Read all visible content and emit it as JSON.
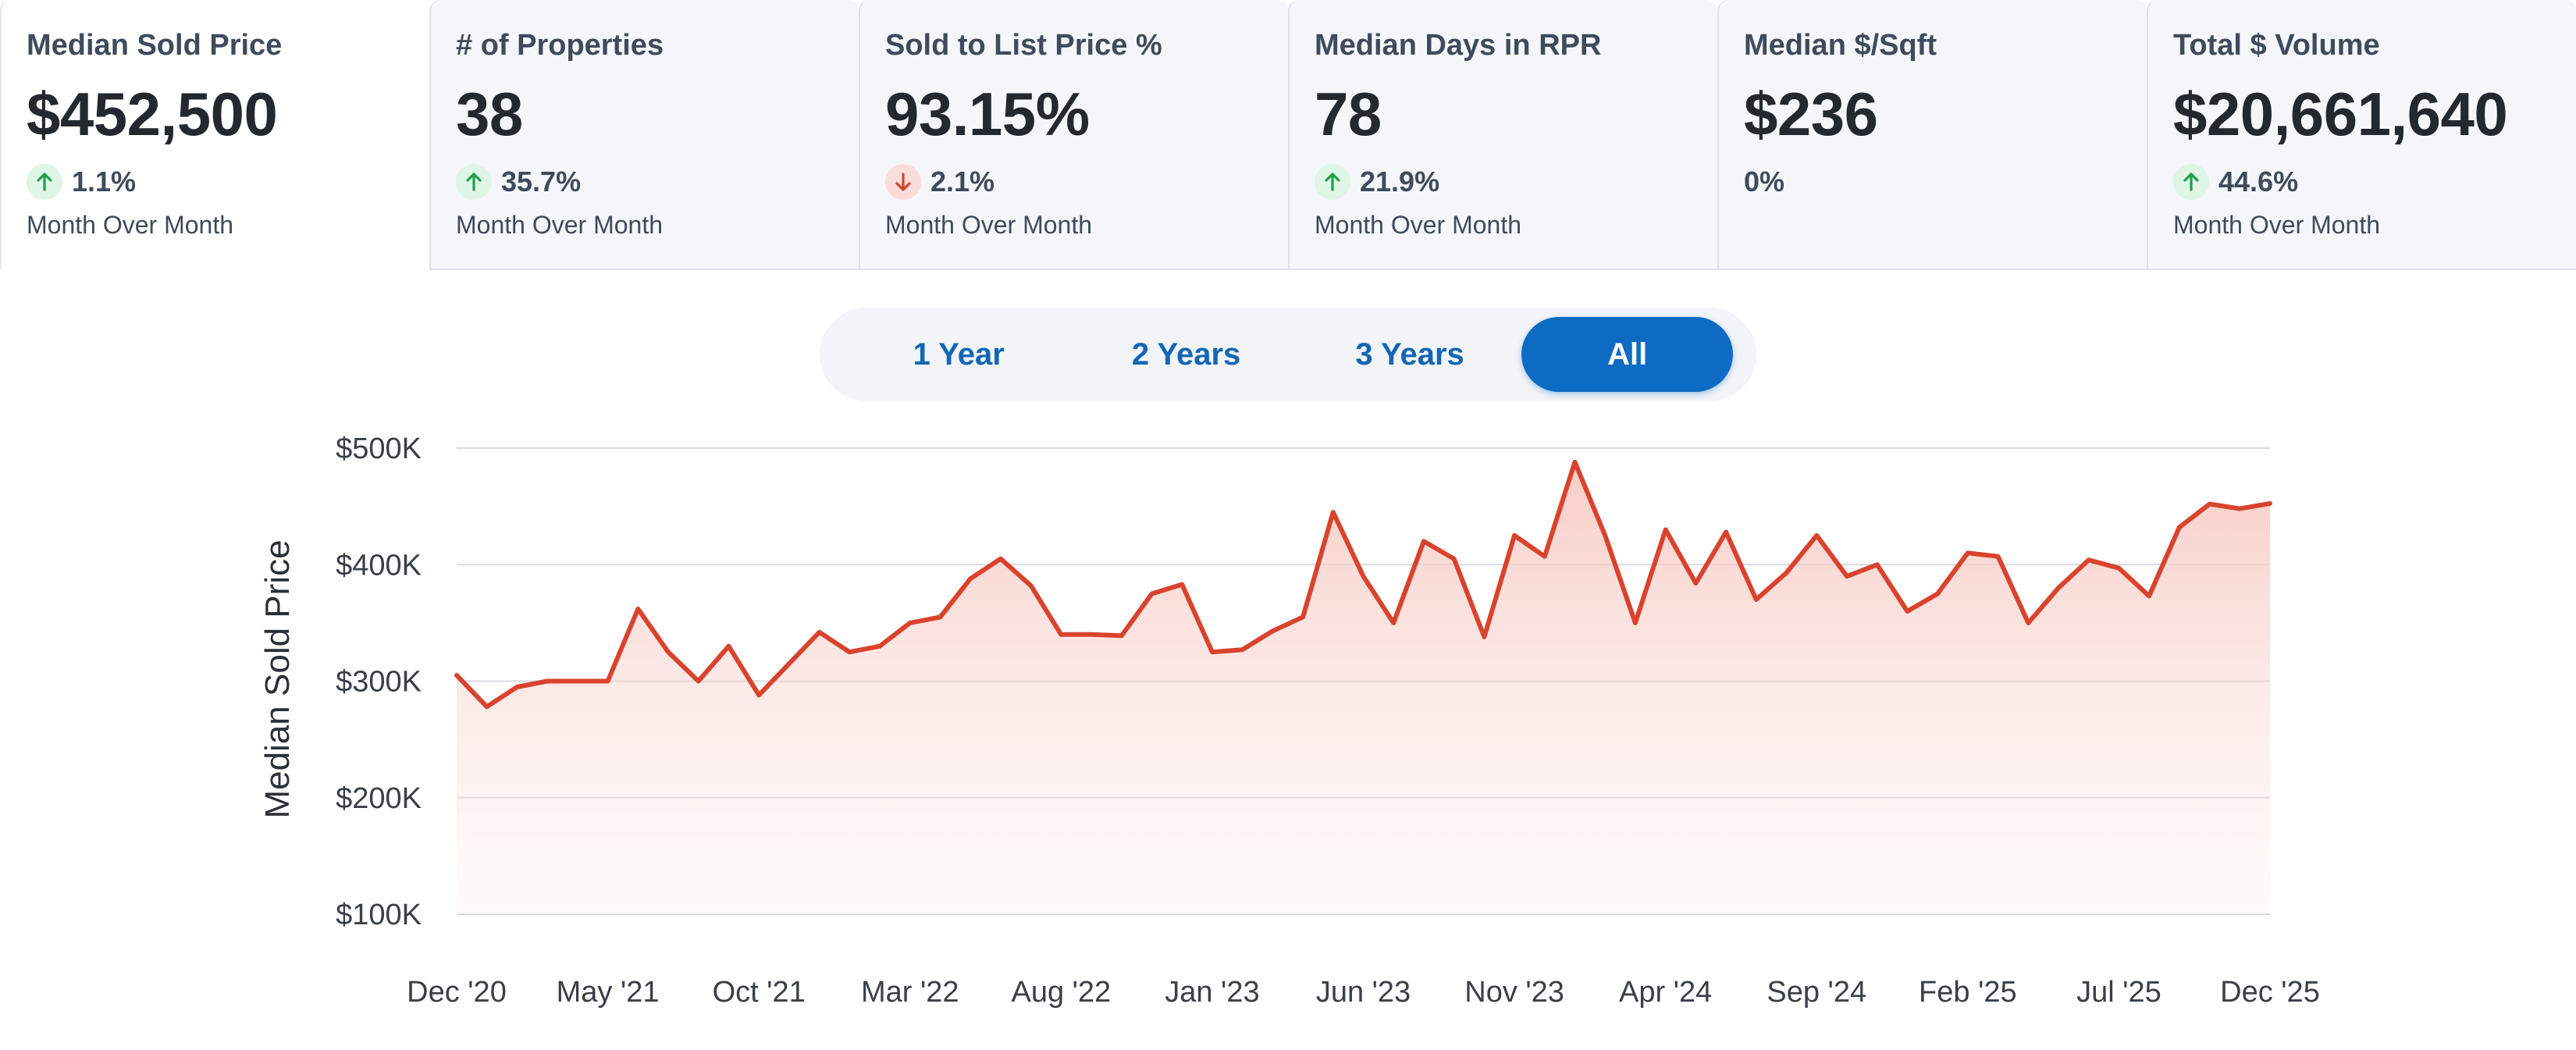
{
  "stats": [
    {
      "title": "Median Sold Price",
      "value": "$452,500",
      "direction": "up",
      "change": "1.1%",
      "period": "Month Over Month",
      "selected": true
    },
    {
      "title": "# of Properties",
      "value": "38",
      "direction": "up",
      "change": "35.7%",
      "period": "Month Over Month",
      "selected": false
    },
    {
      "title": "Sold to List Price %",
      "value": "93.15%",
      "direction": "down",
      "change": "2.1%",
      "period": "Month Over Month",
      "selected": false
    },
    {
      "title": "Median Days in RPR",
      "value": "78",
      "direction": "up",
      "change": "21.9%",
      "period": "Month Over Month",
      "selected": false
    },
    {
      "title": "Median $/Sqft",
      "value": "$236",
      "direction": "none",
      "change": "0%",
      "period": "",
      "selected": false
    },
    {
      "title": "Total $ Volume",
      "value": "$20,661,640",
      "direction": "up",
      "change": "44.6%",
      "period": "Month Over Month",
      "selected": false
    }
  ],
  "range_toggle": {
    "options": [
      "1 Year",
      "2 Years",
      "3 Years",
      "All"
    ],
    "active": "All"
  },
  "colors": {
    "line": "#d9432e",
    "area_top": "#f8c9c2",
    "up": "#1e9e4a",
    "down": "#d9432e",
    "accent": "#0e6bc4"
  },
  "chart_data": {
    "type": "area",
    "title": "",
    "xlabel": "",
    "ylabel": "Median Sold Price",
    "ylim": [
      100000,
      500000
    ],
    "y_ticks": [
      100000,
      200000,
      300000,
      400000,
      500000
    ],
    "y_tick_labels": [
      "$100K",
      "$200K",
      "$300K",
      "$400K",
      "$500K"
    ],
    "x_tick_labels": [
      "Dec '20",
      "May '21",
      "Oct '21",
      "Mar '22",
      "Aug '22",
      "Jan '23",
      "Jun '23",
      "Nov '23",
      "Apr '24",
      "Sep '24",
      "Feb '25",
      "Jul '25",
      "Dec '25"
    ],
    "grid": true,
    "series": [
      {
        "x": [
          "Dec 2020",
          "Jan 2021",
          "Feb 2021",
          "Mar 2021",
          "Apr 2021",
          "May 2021",
          "Jun 2021",
          "Jul 2021",
          "Aug 2021",
          "Sep 2021",
          "Oct 2021",
          "Nov 2021",
          "Dec 2021",
          "Jan 2022",
          "Feb 2022",
          "Mar 2022",
          "Apr 2022",
          "May 2022",
          "Jun 2022",
          "Jul 2022",
          "Aug 2022",
          "Sep 2022",
          "Oct 2022",
          "Nov 2022",
          "Dec 2022",
          "Jan 2023",
          "Feb 2023",
          "Mar 2023",
          "Apr 2023",
          "May 2023",
          "Jun 2023",
          "Jul 2023",
          "Aug 2023",
          "Sep 2023",
          "Oct 2023",
          "Nov 2023",
          "Dec 2023",
          "Jan 2024",
          "Feb 2024",
          "Mar 2024",
          "Apr 2024",
          "May 2024",
          "Jun 2024",
          "Jul 2024",
          "Aug 2024",
          "Sep 2024",
          "Oct 2024",
          "Nov 2024",
          "Dec 2024",
          "Jan 2025",
          "Feb 2025",
          "Mar 2025",
          "Apr 2025",
          "May 2025",
          "Jun 2025",
          "Jul 2025",
          "Aug 2025",
          "Sep 2025",
          "Oct 2025",
          "Nov 2025",
          "Dec 2025"
        ],
        "values": [
          305000,
          278000,
          295000,
          300000,
          300000,
          300000,
          362000,
          325000,
          300000,
          330000,
          288000,
          315000,
          342000,
          325000,
          330000,
          350000,
          355000,
          388000,
          405000,
          382000,
          340000,
          340000,
          339000,
          375000,
          383000,
          325000,
          327000,
          343000,
          355000,
          445000,
          390000,
          350000,
          420000,
          405000,
          338000,
          425000,
          407000,
          488000,
          425000,
          350000,
          430000,
          384000,
          428000,
          370000,
          393000,
          425000,
          390000,
          400000,
          360000,
          375000,
          410000,
          407000,
          350000,
          380000,
          404000,
          397000,
          373000,
          432000,
          452000,
          448000,
          452500
        ]
      }
    ]
  }
}
